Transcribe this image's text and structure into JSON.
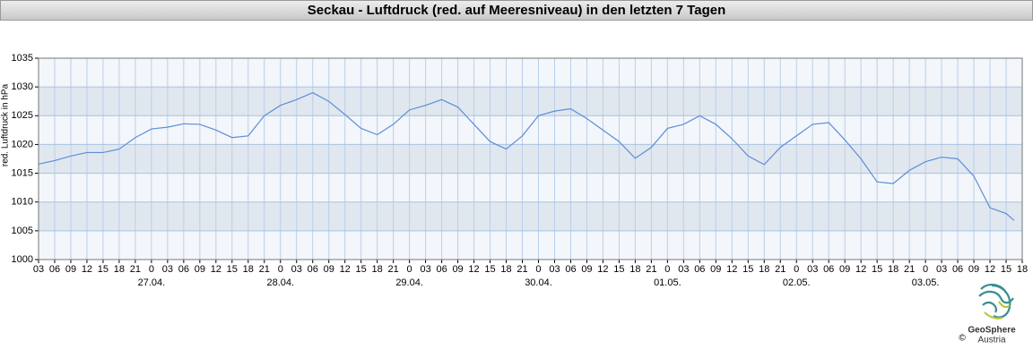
{
  "chart_data": {
    "type": "line",
    "title": "Seckau - Luftdruck (red. auf Meeresniveau) in den letzten 7 Tagen",
    "y_label": "red. Luftdruck in hPa",
    "x": [
      3,
      6,
      9,
      12,
      15,
      18,
      21,
      24,
      27,
      30,
      33,
      36,
      39,
      42,
      45,
      48,
      51,
      54,
      57,
      60,
      63,
      66,
      69,
      72,
      75,
      78,
      81,
      84,
      87,
      90,
      93,
      96,
      99,
      102,
      105,
      108,
      111,
      114,
      117,
      120,
      123,
      126,
      129,
      132,
      135,
      138,
      141,
      144,
      147,
      150,
      153,
      156,
      159,
      162,
      165,
      168,
      171,
      174,
      177,
      180,
      183,
      184.5
    ],
    "series": [
      {
        "color": "#5b8ed8",
        "values": [
          1016.6,
          1017.2,
          1018.0,
          1018.6,
          1018.6,
          1019.2,
          1021.2,
          1022.7,
          1023.0,
          1023.6,
          1023.5,
          1022.5,
          1021.2,
          1021.5,
          1025.0,
          1026.8,
          1027.8,
          1029.0,
          1027.5,
          1025.2,
          1022.8,
          1021.7,
          1023.5,
          1026.0,
          1026.8,
          1027.8,
          1026.5,
          1023.5,
          1020.5,
          1019.2,
          1021.5,
          1025.0,
          1025.8,
          1026.2,
          1024.5,
          1022.5,
          1020.5,
          1017.6,
          1019.5,
          1022.8,
          1023.5,
          1025.0,
          1023.5,
          1021.0,
          1018.0,
          1016.5,
          1019.5,
          1021.5,
          1023.5,
          1023.8,
          1020.8,
          1017.5,
          1013.5,
          1013.2,
          1015.5,
          1017.0,
          1017.8,
          1017.5,
          1014.5,
          1009.0,
          1008.0,
          1006.8
        ]
      }
    ],
    "xlim": [
      3,
      186
    ],
    "xticks": [
      {
        "value": 3,
        "label": "03"
      },
      {
        "value": 6,
        "label": "06"
      },
      {
        "value": 9,
        "label": "09"
      },
      12,
      15,
      18,
      21,
      {
        "value": 24,
        "label": "0"
      },
      {
        "value": 27,
        "label": "03"
      },
      {
        "value": 30,
        "label": "06"
      },
      {
        "value": 33,
        "label": "09"
      },
      {
        "value": 36,
        "label": "12"
      },
      {
        "value": 39,
        "label": "15"
      },
      {
        "value": 42,
        "label": "18"
      },
      {
        "value": 45,
        "label": "21"
      },
      {
        "value": 48,
        "label": "0"
      },
      {
        "value": 51,
        "label": "03"
      },
      {
        "value": 54,
        "label": "06"
      },
      {
        "value": 57,
        "label": "09"
      },
      {
        "value": 60,
        "label": "12"
      },
      {
        "value": 63,
        "label": "15"
      },
      {
        "value": 66,
        "label": "18"
      },
      {
        "value": 69,
        "label": "21"
      },
      {
        "value": 72,
        "label": "0"
      },
      {
        "value": 75,
        "label": "03"
      },
      {
        "value": 78,
        "label": "06"
      },
      {
        "value": 81,
        "label": "09"
      },
      {
        "value": 84,
        "label": "12"
      },
      {
        "value": 87,
        "label": "15"
      },
      {
        "value": 90,
        "label": "18"
      },
      {
        "value": 93,
        "label": "21"
      },
      {
        "value": 96,
        "label": "0"
      },
      {
        "value": 99,
        "label": "03"
      },
      {
        "value": 102,
        "label": "06"
      },
      {
        "value": 105,
        "label": "09"
      },
      {
        "value": 108,
        "label": "12"
      },
      {
        "value": 111,
        "label": "15"
      },
      {
        "value": 114,
        "label": "18"
      },
      {
        "value": 117,
        "label": "21"
      },
      {
        "value": 120,
        "label": "0"
      },
      {
        "value": 123,
        "label": "03"
      },
      {
        "value": 126,
        "label": "06"
      },
      {
        "value": 129,
        "label": "09"
      },
      {
        "value": 132,
        "label": "12"
      },
      {
        "value": 135,
        "label": "15"
      },
      {
        "value": 138,
        "label": "18"
      },
      {
        "value": 141,
        "label": "21"
      },
      {
        "value": 144,
        "label": "0"
      },
      {
        "value": 147,
        "label": "03"
      },
      {
        "value": 150,
        "label": "06"
      },
      {
        "value": 153,
        "label": "09"
      },
      {
        "value": 156,
        "label": "12"
      },
      {
        "value": 159,
        "label": "15"
      },
      {
        "value": 162,
        "label": "18"
      },
      {
        "value": 165,
        "label": "21"
      },
      {
        "value": 168,
        "label": "0"
      },
      {
        "value": 171,
        "label": "03"
      },
      {
        "value": 174,
        "label": "06"
      },
      {
        "value": 177,
        "label": "09"
      },
      {
        "value": 180,
        "label": "12"
      },
      {
        "value": 183,
        "label": "15"
      },
      {
        "value": 186,
        "label": "18"
      }
    ],
    "xdate_labels": [
      {
        "value": 24,
        "label": "27.04."
      },
      {
        "value": 48,
        "label": "28.04."
      },
      {
        "value": 72,
        "label": "29.04."
      },
      {
        "value": 96,
        "label": "30.04."
      },
      {
        "value": 120,
        "label": "01.05."
      },
      {
        "value": 144,
        "label": "02.05."
      },
      {
        "value": 168,
        "label": "03.05."
      }
    ],
    "ylim": [
      1000,
      1035
    ],
    "yticks": [
      1000,
      1005,
      1010,
      1015,
      1020,
      1025,
      1030,
      1035
    ],
    "grid": true,
    "band_colors": [
      "#f3f6fa",
      "#e1e7ef"
    ]
  },
  "logo": {
    "name": "GeoSphere",
    "country": "Austria",
    "copyright": "©"
  }
}
